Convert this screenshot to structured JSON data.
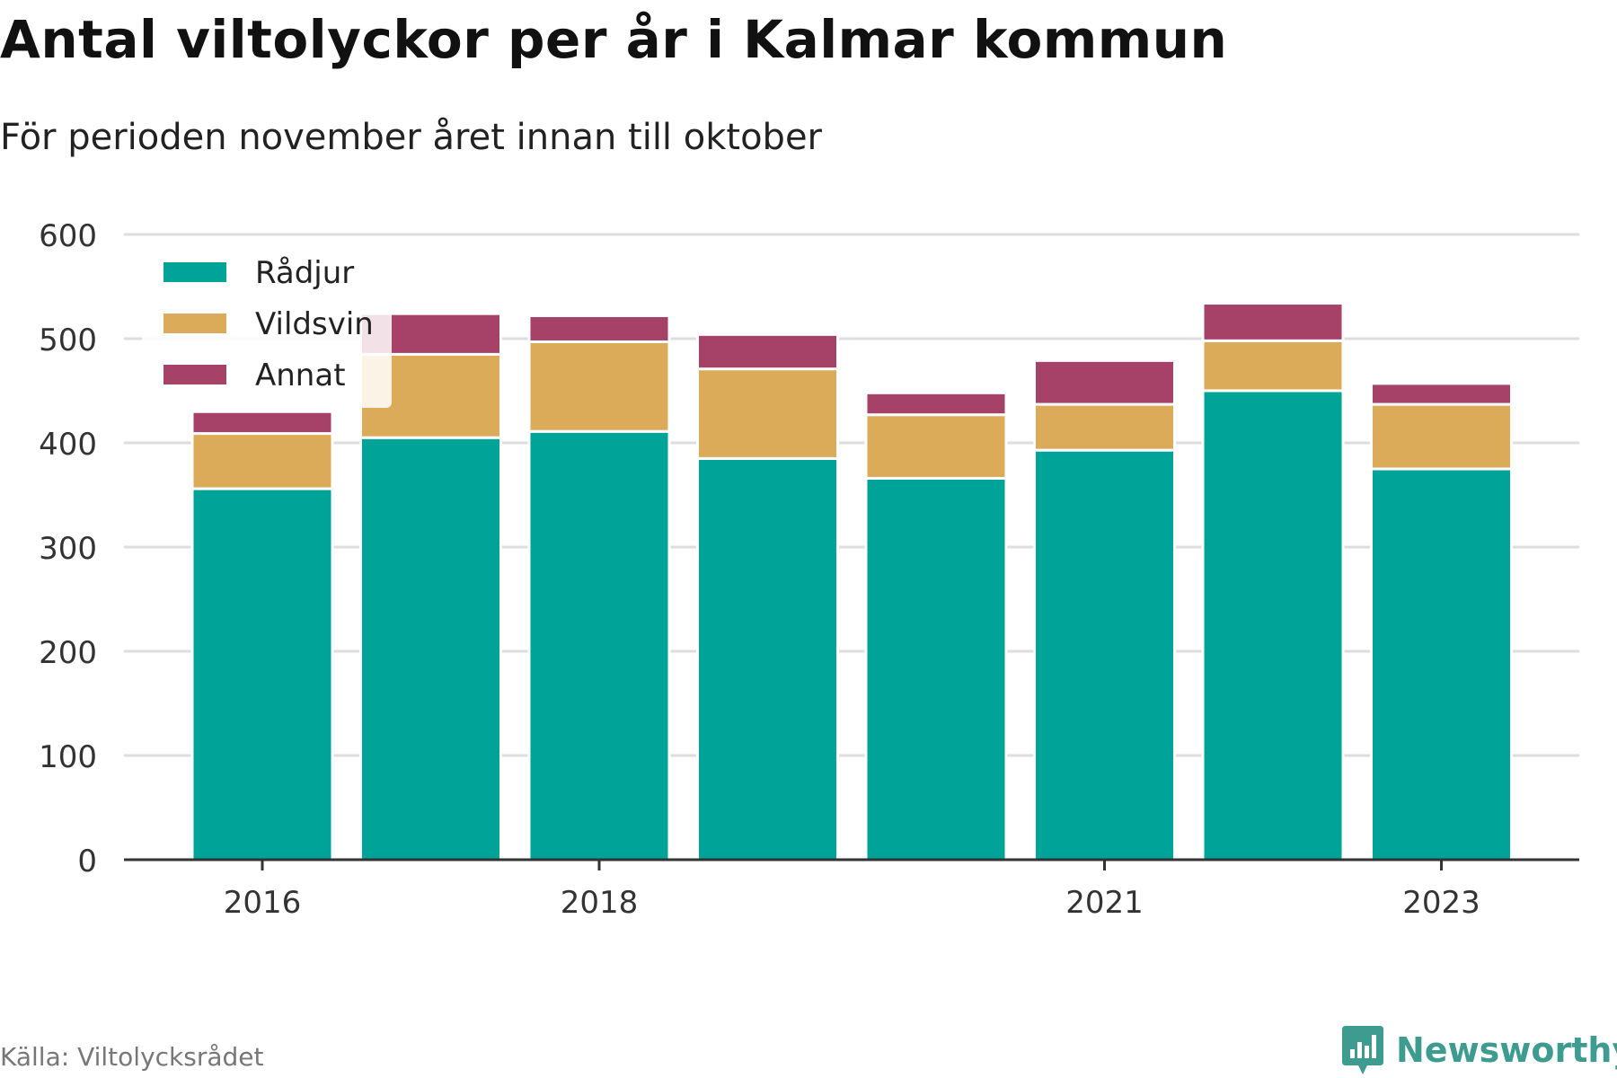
{
  "title": "Antal viltolyckor per år i Kalmar kommun",
  "subtitle": "För perioden november året innan till oktober",
  "source": "Källa: Viltolycksrådet",
  "brand": "Newsworthy",
  "colors": {
    "radjur": "#00a398",
    "vildsvin": "#dbab5a",
    "annat": "#a64168",
    "grid": "#dddddd",
    "axis": "#333333",
    "brand": "#3d9b8f"
  },
  "chart_data": {
    "type": "bar",
    "stacked": true,
    "categories": [
      "2016",
      "2017",
      "2018",
      "2019",
      "2020",
      "2021",
      "2022",
      "2023"
    ],
    "x_tick_labels": [
      "2016",
      "2018",
      "2021",
      "2023"
    ],
    "series": [
      {
        "name": "Rådjur",
        "color": "#00a398",
        "values": [
          356,
          405,
          411,
          385,
          366,
          393,
          450,
          375
        ]
      },
      {
        "name": "Vildsvin",
        "color": "#dbab5a",
        "values": [
          53,
          80,
          86,
          86,
          61,
          44,
          48,
          62
        ]
      },
      {
        "name": "Annat",
        "color": "#a64168",
        "values": [
          21,
          39,
          25,
          33,
          21,
          42,
          36,
          20
        ]
      }
    ],
    "ylim": [
      0,
      600
    ],
    "yticks": [
      0,
      100,
      200,
      300,
      400,
      500,
      600
    ],
    "grid": true,
    "legend_position": "top-left"
  }
}
